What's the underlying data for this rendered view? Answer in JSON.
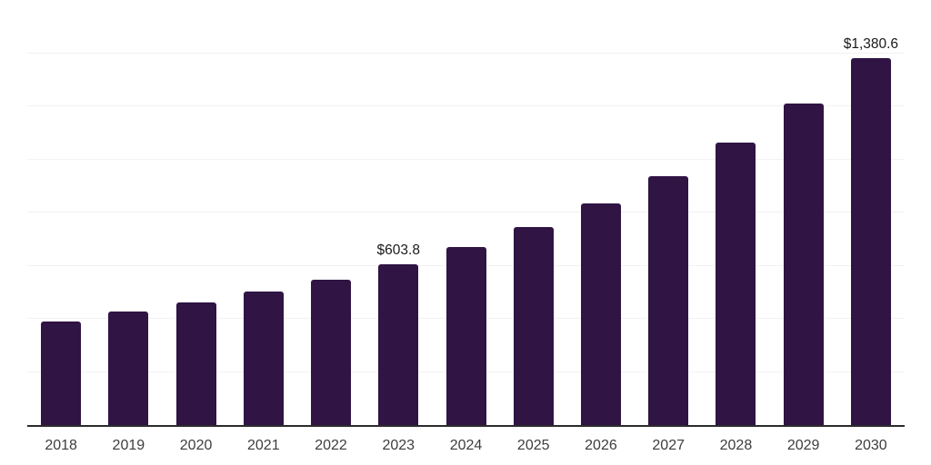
{
  "chart_data": {
    "type": "bar",
    "title": "",
    "xlabel": "",
    "ylabel": "",
    "categories": [
      "2018",
      "2019",
      "2020",
      "2021",
      "2022",
      "2023",
      "2024",
      "2025",
      "2026",
      "2027",
      "2028",
      "2029",
      "2030"
    ],
    "values": [
      389,
      426,
      462,
      503,
      546,
      603.8,
      669,
      745,
      835,
      936,
      1063,
      1210,
      1380.6
    ],
    "data_labels": [
      "",
      "",
      "",
      "",
      "",
      "$603.8",
      "",
      "",
      "",
      "",
      "",
      "",
      "$1,380.6"
    ],
    "ylim": [
      0,
      1600
    ],
    "grid_step": 200,
    "grid": true,
    "legend_position": "none",
    "y_axis_tick_labels_visible": false,
    "colors": {
      "bar": "#2f1444",
      "gridline": "#f2f2f2",
      "axis_line": "#2b2b2b",
      "data_label": "#1a1a1a",
      "tick_label": "#3d3d3d",
      "background": "#ffffff"
    }
  }
}
